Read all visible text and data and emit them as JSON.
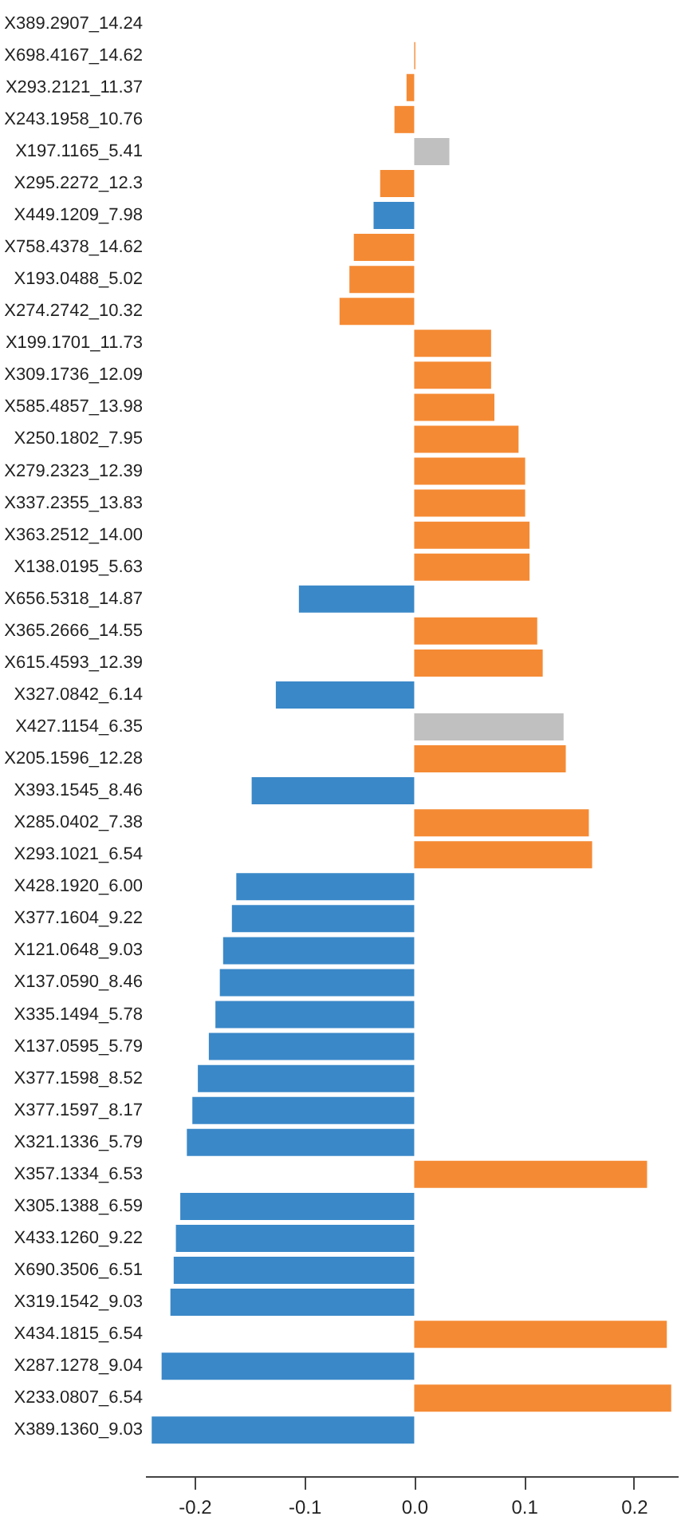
{
  "chart_data": {
    "type": "bar",
    "orientation": "horizontal",
    "categories": [
      "X389.2907_14.24",
      "X698.4167_14.62",
      "X293.2121_11.37",
      "X243.1958_10.76",
      "X197.1165_5.41",
      "X295.2272_12.3",
      "X449.1209_7.98",
      "X758.4378_14.62",
      "X193.0488_5.02",
      "X274.2742_10.32",
      "X199.1701_11.73",
      "X309.1736_12.09",
      "X585.4857_13.98",
      "X250.1802_7.95",
      "X279.2323_12.39",
      "X337.2355_13.83",
      "X363.2512_14.00",
      "X138.0195_5.63",
      "X656.5318_14.87",
      "X365.2666_14.55",
      "X615.4593_12.39",
      "X327.0842_6.14",
      "X427.1154_6.35",
      "X205.1596_12.28",
      "X393.1545_8.46",
      "X285.0402_7.38",
      "X293.1021_6.54",
      "X428.1920_6.00",
      "X377.1604_9.22",
      "X121.0648_9.03",
      "X137.0590_8.46",
      "X335.1494_5.78",
      "X137.0595_5.79",
      "X377.1598_8.52",
      "X377.1597_8.17",
      "X321.1336_5.79",
      "X357.1334_6.53",
      "X305.1388_6.59",
      "X433.1260_9.22",
      "X690.3506_6.51",
      "X319.1542_9.03",
      "X434.1815_6.54",
      "X287.1278_9.04",
      "X233.0807_6.54",
      "X389.1360_9.03"
    ],
    "values": [
      0,
      0.001,
      -0.007,
      -0.018,
      0.032,
      -0.031,
      -0.037,
      -0.055,
      -0.059,
      -0.068,
      0.07,
      0.07,
      0.073,
      0.095,
      0.101,
      0.101,
      0.105,
      0.105,
      -0.105,
      0.112,
      0.117,
      -0.126,
      0.136,
      0.138,
      -0.148,
      0.159,
      0.162,
      -0.162,
      -0.166,
      -0.174,
      -0.177,
      -0.181,
      -0.187,
      -0.197,
      -0.202,
      -0.207,
      0.212,
      -0.213,
      -0.217,
      -0.219,
      -0.222,
      0.23,
      -0.23,
      0.234,
      -0.239
    ],
    "colors": [
      "#f58a34",
      "#f58a34",
      "#f58a34",
      "#f58a34",
      "#c0c0c0",
      "#f58a34",
      "#3a88c8",
      "#f58a34",
      "#f58a34",
      "#f58a34",
      "#f58a34",
      "#f58a34",
      "#f58a34",
      "#f58a34",
      "#f58a34",
      "#f58a34",
      "#f58a34",
      "#f58a34",
      "#3a88c8",
      "#f58a34",
      "#f58a34",
      "#3a88c8",
      "#c0c0c0",
      "#f58a34",
      "#3a88c8",
      "#f58a34",
      "#f58a34",
      "#3a88c8",
      "#3a88c8",
      "#3a88c8",
      "#3a88c8",
      "#3a88c8",
      "#3a88c8",
      "#3a88c8",
      "#3a88c8",
      "#3a88c8",
      "#f58a34",
      "#3a88c8",
      "#3a88c8",
      "#3a88c8",
      "#3a88c8",
      "#f58a34",
      "#3a88c8",
      "#f58a34",
      "#3a88c8"
    ],
    "xlim": [
      -0.245,
      0.24
    ],
    "xticks": [
      -0.2,
      -0.1,
      {
        "value": 0,
        "label": "0.0"
      },
      0.1,
      0.2
    ],
    "grid": false
  }
}
